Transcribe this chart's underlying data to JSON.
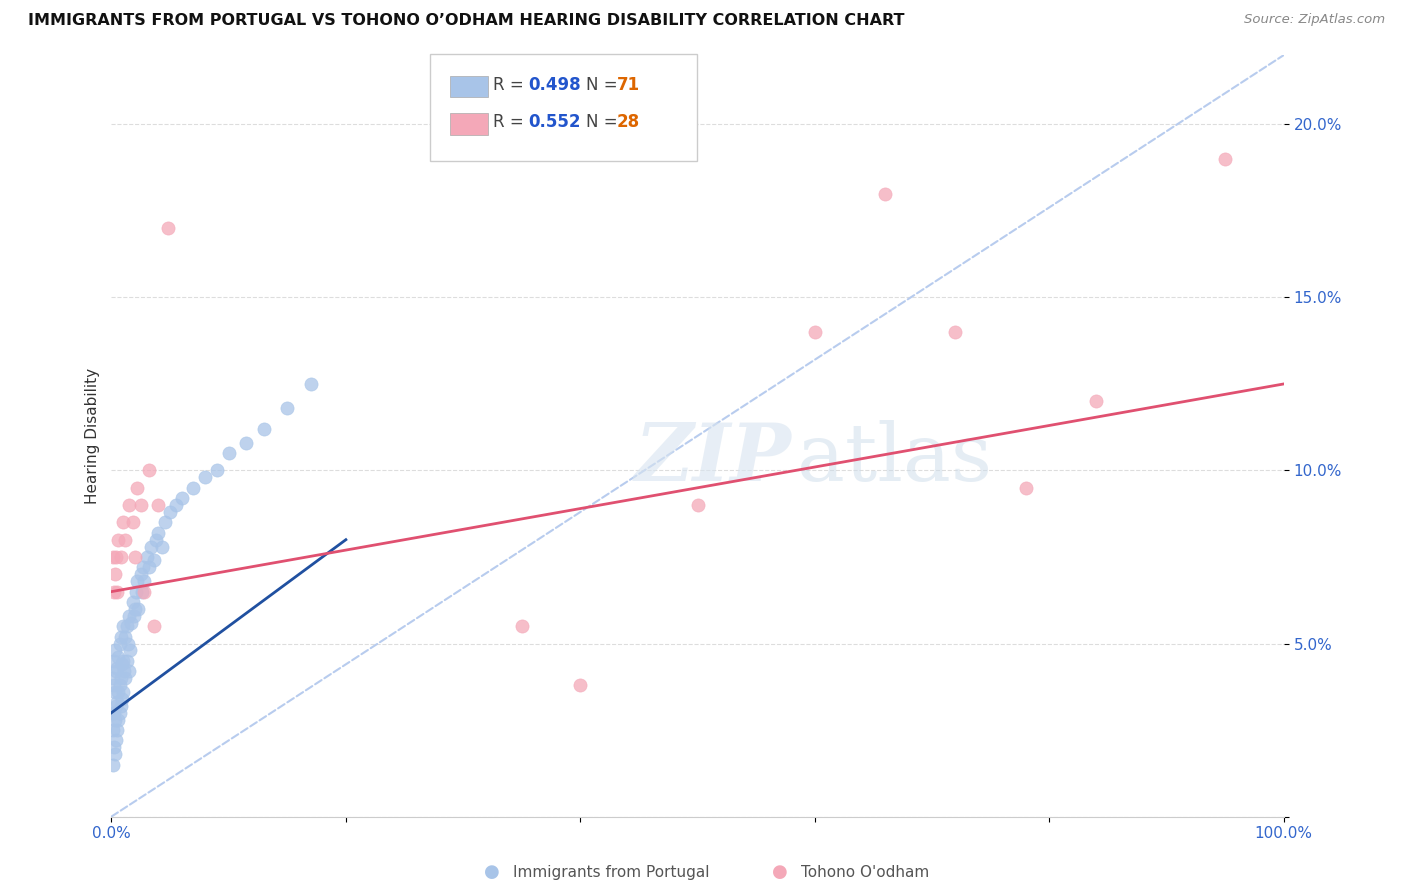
{
  "title": "IMMIGRANTS FROM PORTUGAL VS TOHONO O’ODHAM HEARING DISABILITY CORRELATION CHART",
  "source": "Source: ZipAtlas.com",
  "ylabel": "Hearing Disability",
  "xlim": [
    0,
    1.0
  ],
  "ylim": [
    0,
    0.22
  ],
  "legend_blue_r": "0.498",
  "legend_blue_n": "71",
  "legend_pink_r": "0.552",
  "legend_pink_n": "28",
  "blue_color": "#a8c4e8",
  "pink_color": "#f4a8b8",
  "blue_line_color": "#2050a0",
  "pink_line_color": "#e05070",
  "diagonal_color": "#b8ccee",
  "blue_x": [
    0.0005,
    0.001,
    0.001,
    0.001,
    0.002,
    0.002,
    0.002,
    0.002,
    0.003,
    0.003,
    0.003,
    0.003,
    0.004,
    0.004,
    0.004,
    0.005,
    0.005,
    0.005,
    0.006,
    0.006,
    0.006,
    0.007,
    0.007,
    0.007,
    0.008,
    0.008,
    0.008,
    0.009,
    0.009,
    0.01,
    0.01,
    0.01,
    0.011,
    0.012,
    0.012,
    0.013,
    0.013,
    0.014,
    0.015,
    0.015,
    0.016,
    0.017,
    0.018,
    0.019,
    0.02,
    0.021,
    0.022,
    0.023,
    0.025,
    0.026,
    0.027,
    0.028,
    0.03,
    0.032,
    0.034,
    0.036,
    0.038,
    0.04,
    0.043,
    0.046,
    0.05,
    0.055,
    0.06,
    0.07,
    0.08,
    0.09,
    0.1,
    0.115,
    0.13,
    0.15,
    0.17
  ],
  "blue_y": [
    0.03,
    0.015,
    0.025,
    0.04,
    0.02,
    0.03,
    0.038,
    0.045,
    0.018,
    0.028,
    0.036,
    0.048,
    0.022,
    0.032,
    0.042,
    0.025,
    0.033,
    0.043,
    0.028,
    0.036,
    0.046,
    0.03,
    0.038,
    0.05,
    0.032,
    0.04,
    0.052,
    0.034,
    0.044,
    0.036,
    0.045,
    0.055,
    0.042,
    0.04,
    0.052,
    0.045,
    0.055,
    0.05,
    0.042,
    0.058,
    0.048,
    0.056,
    0.062,
    0.058,
    0.06,
    0.065,
    0.068,
    0.06,
    0.07,
    0.065,
    0.072,
    0.068,
    0.075,
    0.072,
    0.078,
    0.074,
    0.08,
    0.082,
    0.078,
    0.085,
    0.088,
    0.09,
    0.092,
    0.095,
    0.098,
    0.1,
    0.105,
    0.108,
    0.112,
    0.118,
    0.125
  ],
  "pink_x": [
    0.001,
    0.002,
    0.003,
    0.004,
    0.005,
    0.006,
    0.008,
    0.01,
    0.012,
    0.015,
    0.018,
    0.02,
    0.022,
    0.025,
    0.028,
    0.032,
    0.036,
    0.04,
    0.048,
    0.35,
    0.4,
    0.5,
    0.6,
    0.66,
    0.72,
    0.78,
    0.84,
    0.95
  ],
  "pink_y": [
    0.075,
    0.065,
    0.07,
    0.075,
    0.065,
    0.08,
    0.075,
    0.085,
    0.08,
    0.09,
    0.085,
    0.075,
    0.095,
    0.09,
    0.065,
    0.1,
    0.055,
    0.09,
    0.17,
    0.055,
    0.038,
    0.09,
    0.14,
    0.18,
    0.14,
    0.095,
    0.12,
    0.19
  ],
  "blue_line_x": [
    0.0,
    0.2
  ],
  "blue_line_y": [
    0.03,
    0.08
  ],
  "pink_line_x": [
    0.0,
    1.0
  ],
  "pink_line_y": [
    0.065,
    0.125
  ]
}
